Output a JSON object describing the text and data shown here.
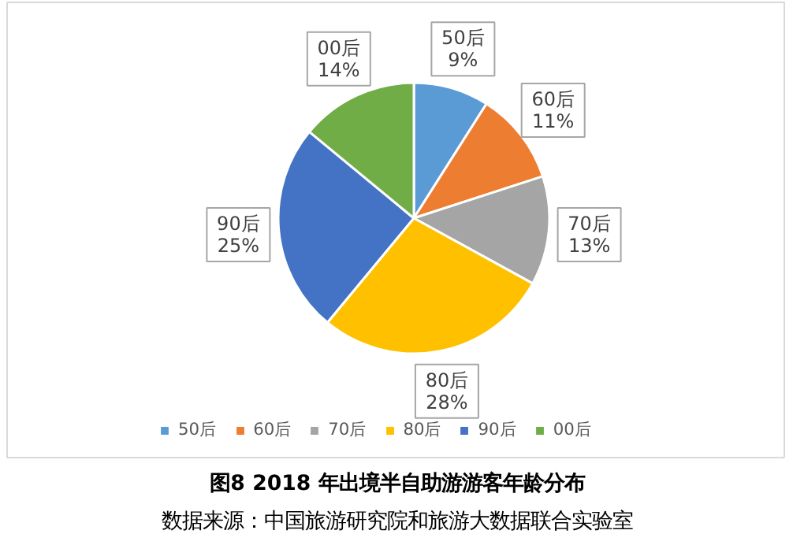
{
  "chart_data": {
    "type": "pie",
    "title": "图8 2018 年出境半自助游游客年龄分布",
    "categories": [
      "50后",
      "60后",
      "70后",
      "80后",
      "90后",
      "00后"
    ],
    "values": [
      9,
      11,
      13,
      28,
      25,
      14
    ],
    "value_labels": [
      "9%",
      "11%",
      "13%",
      "28%",
      "25%",
      "14%"
    ],
    "colors": [
      "#5b9bd5",
      "#ed7d31",
      "#a5a5a5",
      "#ffc000",
      "#4472c4",
      "#70ad47"
    ],
    "legend": "bottom",
    "annotations": [
      "数据来源：中国旅游研究院和旅游大数据联合实验室"
    ]
  }
}
